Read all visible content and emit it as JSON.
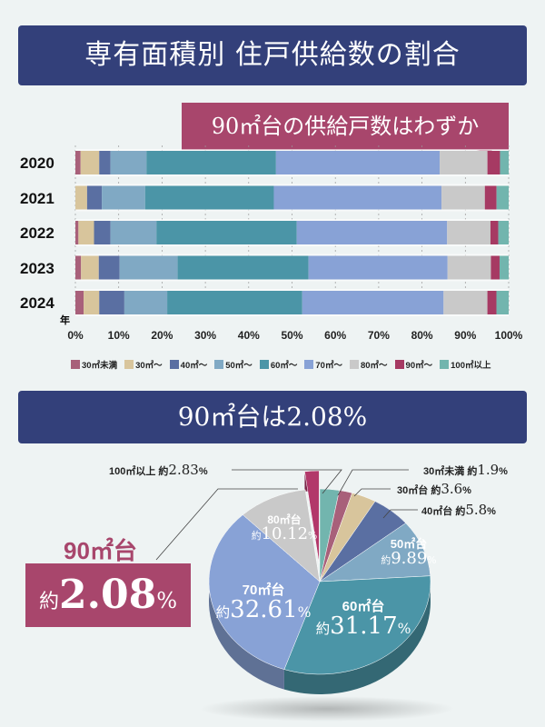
{
  "title": "専有面積別 住戸供給数の割合",
  "callout": "90㎡台の供給戸数はわずか",
  "banner2": "90㎡台は2.08%",
  "highlight": {
    "label": "90㎡台",
    "prefix": "約",
    "value": "2.08",
    "unit": "%"
  },
  "colors": {
    "header": "#33407a",
    "accent": "#a8466c"
  },
  "chart_data": [
    {
      "type": "bar",
      "orientation": "horizontal-stacked",
      "categories": [
        "2020",
        "2021",
        "2022",
        "2023",
        "2024"
      ],
      "ylabel": "年",
      "xlim": [
        0,
        100
      ],
      "xticks": [
        "0%",
        "10%",
        "20%",
        "30%",
        "40%",
        "50%",
        "60%",
        "70%",
        "80%",
        "90%",
        "100%"
      ],
      "grid": true,
      "legend": "bottom",
      "series": [
        {
          "name": "30㎡未満",
          "color": "#a8607a",
          "values": [
            1.2,
            0,
            0.7,
            1.3,
            1.9
          ]
        },
        {
          "name": "30㎡～",
          "color": "#d8c59c",
          "values": [
            4.3,
            2.7,
            3.6,
            4.1,
            3.6
          ]
        },
        {
          "name": "40㎡～",
          "color": "#5a6fa2",
          "values": [
            2.6,
            3.4,
            3.8,
            4.8,
            5.8
          ]
        },
        {
          "name": "50㎡～",
          "color": "#80a9c4",
          "values": [
            8.3,
            10.0,
            10.6,
            13.4,
            9.89
          ]
        },
        {
          "name": "60㎡～",
          "color": "#4b95a7",
          "values": [
            29.9,
            29.7,
            32.4,
            30.2,
            31.17
          ]
        },
        {
          "name": "70㎡～",
          "color": "#88a2d6",
          "values": [
            37.8,
            38.7,
            34.7,
            32.1,
            32.61
          ]
        },
        {
          "name": "80㎡～",
          "color": "#c9c9c9",
          "values": [
            11.0,
            10.0,
            10.0,
            10.0,
            10.12
          ]
        },
        {
          "name": "90㎡～",
          "color": "#a63a63",
          "values": [
            2.9,
            2.7,
            1.8,
            2.0,
            2.08
          ]
        },
        {
          "name": "100㎡以上",
          "color": "#72b5ae",
          "values": [
            2.0,
            2.8,
            2.4,
            2.1,
            2.83
          ]
        }
      ]
    },
    {
      "type": "pie",
      "prefix": "約",
      "slices": [
        {
          "name": "100㎡以上",
          "value": 2.83,
          "color": "#72b5ae"
        },
        {
          "name": "30㎡未満",
          "value": 1.9,
          "color": "#a8607a"
        },
        {
          "name": "30㎡台",
          "value": 3.6,
          "color": "#d8c59c"
        },
        {
          "name": "40㎡台",
          "value": 5.8,
          "color": "#5a6fa2"
        },
        {
          "name": "50㎡台",
          "value": 9.89,
          "color": "#80a9c4"
        },
        {
          "name": "60㎡台",
          "value": 31.17,
          "color": "#4b95a7"
        },
        {
          "name": "70㎡台",
          "value": 32.61,
          "color": "#88a2d6"
        },
        {
          "name": "80㎡台",
          "value": 10.12,
          "color": "#c9c9c9"
        },
        {
          "name": "90㎡台",
          "value": 2.08,
          "color": "#b2386a",
          "exploded": true
        }
      ]
    }
  ]
}
